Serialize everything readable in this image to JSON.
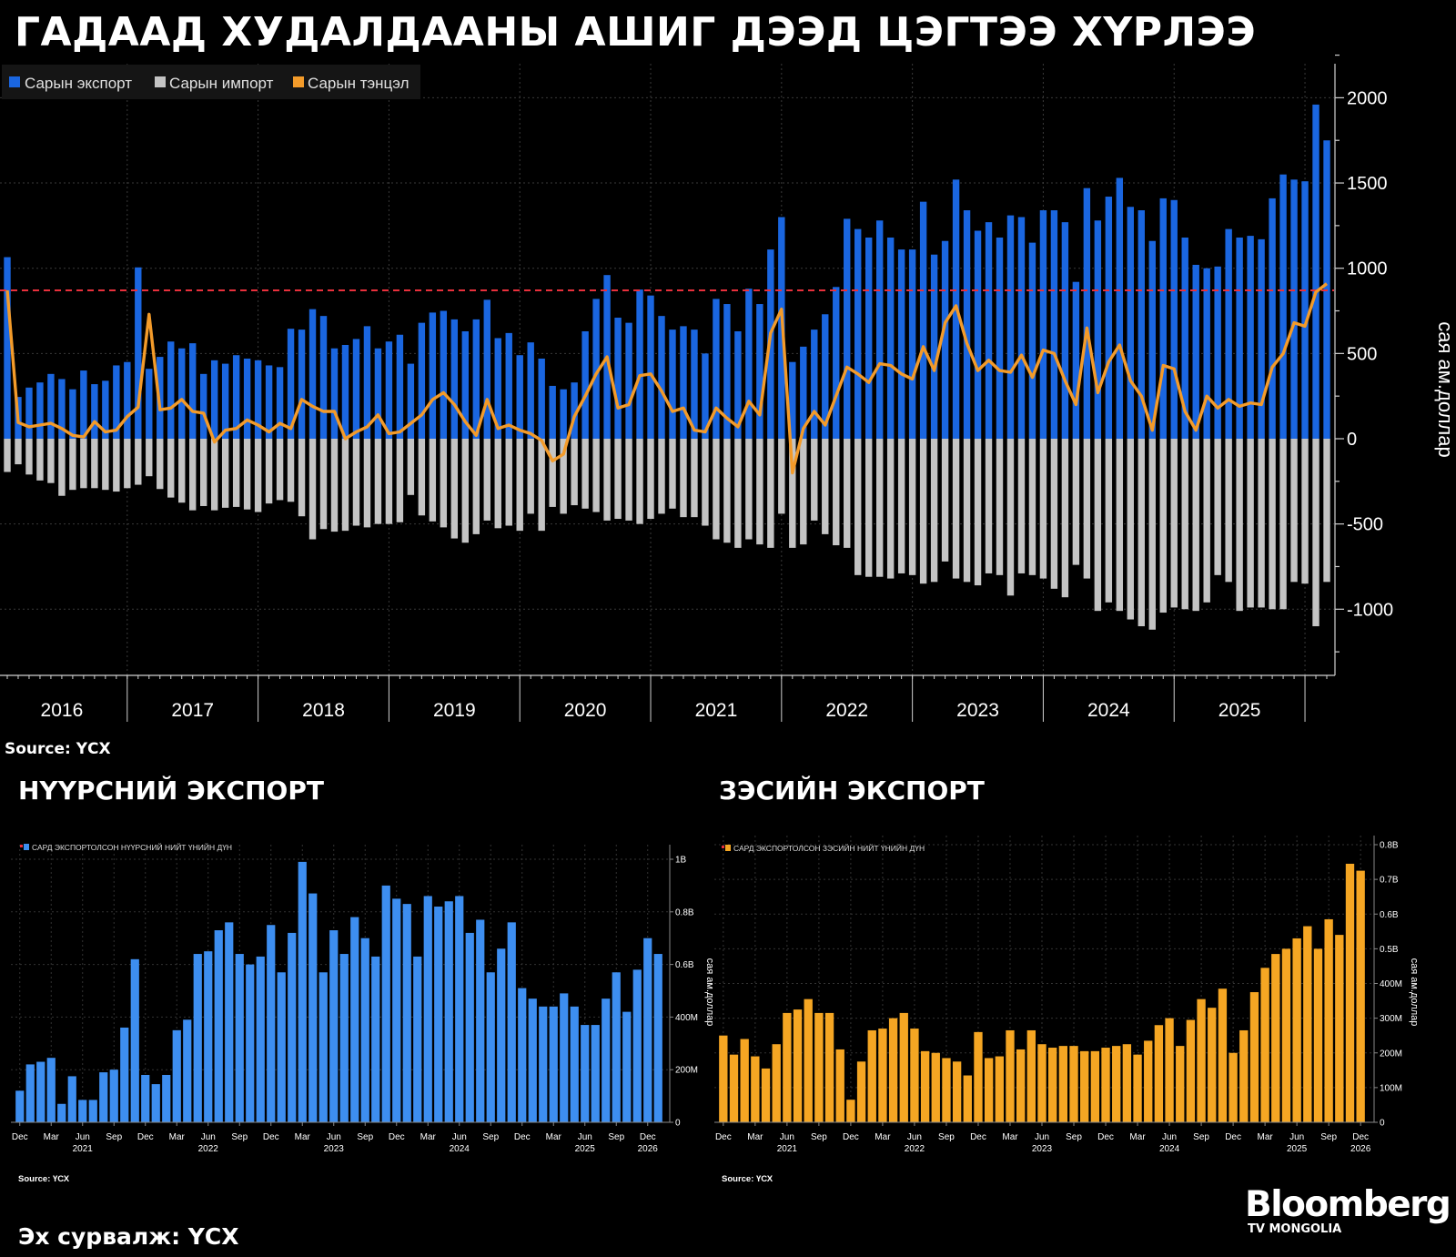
{
  "title": "ГАДААД ХУДАЛДААНЫ АШИГ ДЭЭД ЦЭГТЭЭ ХҮРЛЭЭ",
  "footer_source": "Эх сурвалж: ҮСХ",
  "logo": {
    "name": "Bloomberg",
    "sub": "TV MONGOLIA"
  },
  "chart_data": [
    {
      "type": "bar",
      "source": "Source: ҮСХ",
      "ylabel": "сая ам.доллар",
      "ylim": [
        -1400,
        2250
      ],
      "yticks": [
        "2000",
        "1500",
        "1000",
        "500",
        "0",
        "-500",
        "-1000"
      ],
      "reference_line": 870,
      "year_labels": [
        "2016",
        "2017",
        "2018",
        "2019",
        "2020",
        "2021",
        "2022",
        "2023",
        "2024",
        "2025"
      ],
      "legend_position": "top-left",
      "colors": {
        "export": "#1a66e0",
        "import": "#c4c4c4",
        "balance": "#f39b2a",
        "reference": "#e8303c"
      },
      "series": [
        {
          "name": "Сарын экспорт",
          "type": "bar",
          "values": [
            1065,
            245,
            300,
            330,
            380,
            350,
            290,
            400,
            320,
            340,
            430,
            450,
            1005,
            410,
            480,
            570,
            530,
            560,
            380,
            460,
            440,
            490,
            470,
            460,
            430,
            420,
            645,
            640,
            760,
            720,
            530,
            550,
            585,
            660,
            530,
            570,
            610,
            440,
            680,
            740,
            750,
            700,
            630,
            700,
            815,
            590,
            620,
            490,
            565,
            470,
            310,
            290,
            330,
            630,
            820,
            960,
            710,
            680,
            875,
            840,
            720,
            640,
            660,
            640,
            500,
            820,
            790,
            630,
            880,
            790,
            1110,
            1300,
            450,
            540,
            640,
            730,
            890,
            1290,
            1230,
            1180,
            1280,
            1180,
            1110,
            1110,
            1390,
            1080,
            1160,
            1520,
            1340,
            1220,
            1270,
            1180,
            1310,
            1300,
            1150,
            1340,
            1340,
            1270,
            920,
            1470,
            1280,
            1420,
            1530,
            1360,
            1340,
            1160,
            1410,
            1400,
            1180,
            1020,
            1000,
            1010,
            1230,
            1180,
            1190,
            1170,
            1410,
            1550,
            1520,
            1510,
            1960,
            1750
          ]
        },
        {
          "name": "Сарын импорт",
          "type": "bar",
          "values": [
            -195,
            -150,
            -210,
            -245,
            -260,
            -335,
            -300,
            -290,
            -290,
            -300,
            -310,
            -290,
            -270,
            -220,
            -295,
            -345,
            -375,
            -420,
            -395,
            -420,
            -405,
            -400,
            -415,
            -430,
            -380,
            -360,
            -370,
            -455,
            -590,
            -530,
            -545,
            -540,
            -510,
            -520,
            -500,
            -500,
            -490,
            -330,
            -450,
            -485,
            -520,
            -585,
            -610,
            -560,
            -480,
            -525,
            -510,
            -540,
            -440,
            -540,
            -400,
            -440,
            -390,
            -410,
            -430,
            -480,
            -470,
            -480,
            -500,
            -470,
            -440,
            -410,
            -460,
            -460,
            -510,
            -590,
            -610,
            -640,
            -590,
            -620,
            -640,
            -440,
            -640,
            -620,
            -480,
            -560,
            -625,
            -640,
            -800,
            -810,
            -810,
            -820,
            -790,
            -800,
            -850,
            -840,
            -720,
            -820,
            -840,
            -860,
            -790,
            -800,
            -920,
            -790,
            -800,
            -820,
            -880,
            -930,
            -740,
            -820,
            -1010,
            -960,
            -1010,
            -1060,
            -1100,
            -1120,
            -1020,
            -990,
            -1000,
            -1010,
            -960,
            -800,
            -840,
            -1010,
            -990,
            -990,
            -1000,
            -1000,
            -840,
            -850,
            -1100,
            -840
          ]
        },
        {
          "name": "Сарын тэнцэл",
          "type": "line",
          "values": [
            870,
            95,
            70,
            80,
            90,
            60,
            20,
            10,
            100,
            40,
            50,
            130,
            185,
            730,
            170,
            180,
            230,
            160,
            150,
            -20,
            50,
            60,
            110,
            80,
            40,
            90,
            60,
            230,
            190,
            160,
            160,
            0,
            40,
            70,
            140,
            30,
            40,
            90,
            140,
            230,
            270,
            200,
            100,
            20,
            230,
            60,
            80,
            50,
            30,
            -10,
            -130,
            -90,
            130,
            250,
            380,
            480,
            180,
            200,
            370,
            380,
            280,
            160,
            180,
            50,
            40,
            180,
            120,
            70,
            220,
            140,
            620,
            760,
            -200,
            60,
            160,
            80,
            250,
            420,
            380,
            330,
            440,
            430,
            380,
            350,
            540,
            400,
            680,
            780,
            560,
            400,
            460,
            400,
            390,
            490,
            360,
            520,
            500,
            340,
            200,
            650,
            270,
            450,
            550,
            340,
            250,
            50,
            430,
            410,
            160,
            50,
            250,
            180,
            230,
            190,
            210,
            200,
            420,
            500,
            680,
            660,
            860,
            910
          ]
        }
      ]
    },
    {
      "type": "bar",
      "title": "НҮҮРСНИЙ ЭКСПОРТ",
      "legend": "САРД ЭКСПОРТОЛСОН НҮҮРСНИЙ НИЙТ ҮНИЙН ДҮН",
      "ylabel": "сая ам.доллар",
      "ylim": [
        0,
        1.05
      ],
      "yticks": [
        "1B",
        "0.8B",
        "0.6B",
        "400M",
        "200M",
        "0"
      ],
      "month_labels": [
        "Dec",
        "Mar",
        "Jun",
        "Sep",
        "Dec",
        "Mar",
        "Jun",
        "Sep",
        "Dec",
        "Mar",
        "Jun",
        "Sep",
        "Dec",
        "Mar",
        "Jun",
        "Sep",
        "Dec",
        "Mar",
        "Jun",
        "Sep",
        "Dec"
      ],
      "year_labels": [
        "2021",
        "2022",
        "2023",
        "2024",
        "2025",
        "2026"
      ],
      "source": "Source: ҮСХ",
      "color": "#3d8ef0",
      "values": [
        0.12,
        0.22,
        0.23,
        0.245,
        0.07,
        0.175,
        0.085,
        0.085,
        0.19,
        0.2,
        0.36,
        0.62,
        0.18,
        0.145,
        0.18,
        0.35,
        0.39,
        0.64,
        0.65,
        0.73,
        0.76,
        0.64,
        0.6,
        0.63,
        0.75,
        0.57,
        0.72,
        0.99,
        0.87,
        0.57,
        0.73,
        0.64,
        0.78,
        0.7,
        0.63,
        0.9,
        0.85,
        0.83,
        0.63,
        0.86,
        0.82,
        0.84,
        0.86,
        0.72,
        0.77,
        0.57,
        0.66,
        0.76,
        0.51,
        0.47,
        0.44,
        0.44,
        0.49,
        0.44,
        0.37,
        0.37,
        0.47,
        0.57,
        0.42,
        0.58,
        0.7,
        0.64
      ]
    },
    {
      "type": "bar",
      "title": "ЗЭСИЙН ЭКСПОРТ",
      "legend": "САРД ЭКСПОРТОЛСОН ЗЭСИЙН НИЙТ ҮНИЙН ДҮН",
      "ylabel": "сая ам.доллар",
      "ylim": [
        0,
        0.8
      ],
      "yticks": [
        "0.8B",
        "0.7B",
        "0.6B",
        "0.5B",
        "400M",
        "300M",
        "200M",
        "100M",
        "0"
      ],
      "month_labels": [
        "Dec",
        "Mar",
        "Jun",
        "Sep",
        "Dec",
        "Mar",
        "Jun",
        "Sep",
        "Dec",
        "Mar",
        "Jun",
        "Sep",
        "Dec",
        "Mar",
        "Jun",
        "Sep",
        "Dec",
        "Mar",
        "Jun",
        "Sep",
        "Dec"
      ],
      "year_labels": [
        "2021",
        "2022",
        "2023",
        "2024",
        "2025",
        "2026"
      ],
      "source": "Source: ҮСХ",
      "color": "#f5a623",
      "values": [
        0.25,
        0.195,
        0.24,
        0.19,
        0.155,
        0.225,
        0.315,
        0.325,
        0.355,
        0.315,
        0.315,
        0.21,
        0.065,
        0.175,
        0.265,
        0.27,
        0.3,
        0.315,
        0.27,
        0.205,
        0.2,
        0.185,
        0.175,
        0.135,
        0.26,
        0.185,
        0.19,
        0.265,
        0.21,
        0.265,
        0.225,
        0.215,
        0.22,
        0.22,
        0.205,
        0.205,
        0.215,
        0.22,
        0.225,
        0.195,
        0.235,
        0.28,
        0.3,
        0.22,
        0.295,
        0.355,
        0.33,
        0.385,
        0.2,
        0.265,
        0.375,
        0.445,
        0.485,
        0.5,
        0.53,
        0.565,
        0.5,
        0.585,
        0.54,
        0.745,
        0.725
      ]
    }
  ]
}
